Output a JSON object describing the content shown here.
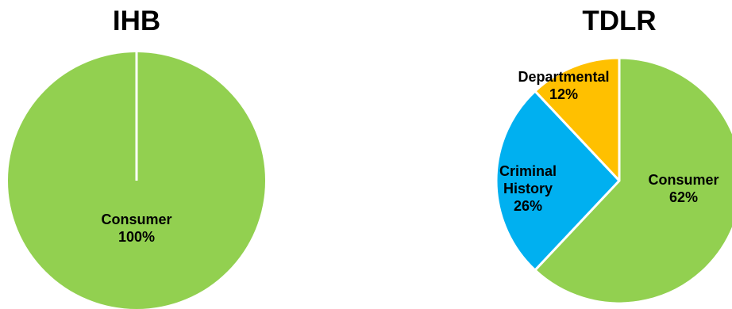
{
  "chart_data": [
    {
      "type": "pie",
      "title": "IHB",
      "categories": [
        "Consumer"
      ],
      "values": [
        100
      ],
      "value_labels": [
        "100%"
      ],
      "colors": [
        "#92D050"
      ],
      "border_color": "#FFFFFF",
      "legend": "none"
    },
    {
      "type": "pie",
      "title": "TDLR",
      "categories": [
        "Consumer",
        "Criminal History",
        "Departmental"
      ],
      "label_lines": [
        [
          "Consumer"
        ],
        [
          "Criminal",
          "History"
        ],
        [
          "Departmental"
        ]
      ],
      "values": [
        62,
        26,
        12
      ],
      "value_labels": [
        "62%",
        "26%",
        "12%"
      ],
      "colors": [
        "#92D050",
        "#00B0F0",
        "#FFC000"
      ],
      "border_color": "#FFFFFF",
      "legend": "none"
    }
  ]
}
